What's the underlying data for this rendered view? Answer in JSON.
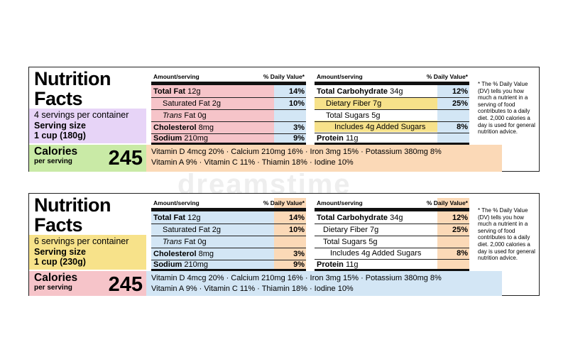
{
  "colors": {
    "pink": "#f6c4c9",
    "blue": "#d3e6f5",
    "yellow": "#f7e28a",
    "purple": "#e7d4f7",
    "green": "#c9eaa6",
    "orange": "#fbd9b7"
  },
  "labels": [
    {
      "title_line1": "Nutrition",
      "title_line2": "Facts",
      "servings_per_container": "4 servings per container",
      "serving_size_label": "Serving size",
      "serving_size_value": "1 cup (180g)",
      "calories_label": "Calories",
      "per_serving": "per serving",
      "calories_value": "245",
      "col_header_left": "Amount/serving",
      "col_header_right": "% Daily Value*",
      "left_rows": [
        {
          "name": "Total Fat",
          "amount": "12g",
          "dv": "14%"
        },
        {
          "name": "Saturated Fat",
          "amount": "2g",
          "dv": "10%"
        },
        {
          "name": "Trans",
          "amount": "Fat 0g",
          "dv": ""
        },
        {
          "name": "Cholesterol",
          "amount": "8mg",
          "dv": "3%"
        },
        {
          "name": "Sodium",
          "amount": "210mg",
          "dv": "9%"
        }
      ],
      "right_rows": [
        {
          "name": "Total Carbohydrate",
          "amount": "34g",
          "dv": "12%"
        },
        {
          "name": "Dietary Fiber",
          "amount": "7g",
          "dv": "25%"
        },
        {
          "name": "Total Sugars",
          "amount": "5g",
          "dv": ""
        },
        {
          "name": "Includes 4g Added Sugars",
          "amount": "",
          "dv": "8%"
        },
        {
          "name": "Protein",
          "amount": "11g",
          "dv": ""
        }
      ],
      "vitamins_line1": "Vitamin D 4mcg 20% · Calcium 210mg 16% · Iron 3mg 15% · Potassium 380mg 8%",
      "vitamins_line2": "Vitamin A 9% · Vitamin C 11% · Thiamin 18% · Iodine 10%",
      "footnote": "* The % Daily Value (DV) tells you how much a nutrient in a serving of food contributes to a daily diet. 2,000 calories a day is used for general nutrition advice."
    },
    {
      "title_line1": "Nutrition",
      "title_line2": "Facts",
      "servings_per_container": "6 servings per container",
      "serving_size_label": "Serving size",
      "serving_size_value": "1 cup (230g)",
      "calories_label": "Calories",
      "per_serving": "per serving",
      "calories_value": "245",
      "col_header_left": "Amount/serving",
      "col_header_right": "% Daily Value*",
      "left_rows": [
        {
          "name": "Total Fat",
          "amount": "12g",
          "dv": "14%"
        },
        {
          "name": "Saturated Fat",
          "amount": "2g",
          "dv": "10%"
        },
        {
          "name": "Trans",
          "amount": "Fat 0g",
          "dv": ""
        },
        {
          "name": "Cholesterol",
          "amount": "8mg",
          "dv": "3%"
        },
        {
          "name": "Sodium",
          "amount": "210mg",
          "dv": "9%"
        }
      ],
      "right_rows": [
        {
          "name": "Total Carbohydrate",
          "amount": "34g",
          "dv": "12%"
        },
        {
          "name": "Dietary Fiber",
          "amount": "7g",
          "dv": "25%"
        },
        {
          "name": "Total Sugars",
          "amount": "5g",
          "dv": ""
        },
        {
          "name": "Includes 4g Added Sugars",
          "amount": "",
          "dv": "8%"
        },
        {
          "name": "Protein",
          "amount": "11g",
          "dv": ""
        }
      ],
      "vitamins_line1": "Vitamin D 4mcg 20% · Calcium 210mg 16% · Iron 3mg 15% · Potassium 380mg 8%",
      "vitamins_line2": "Vitamin A 9% · Vitamin C 11% · Thiamin 18% · Iodine 10%",
      "footnote": "* The % Daily Value (DV) tells you how much a nutrient in a serving of food contributes to a daily diet. 2,000 calories a day is used for general nutrition advice."
    }
  ],
  "watermark": "dreamstime"
}
